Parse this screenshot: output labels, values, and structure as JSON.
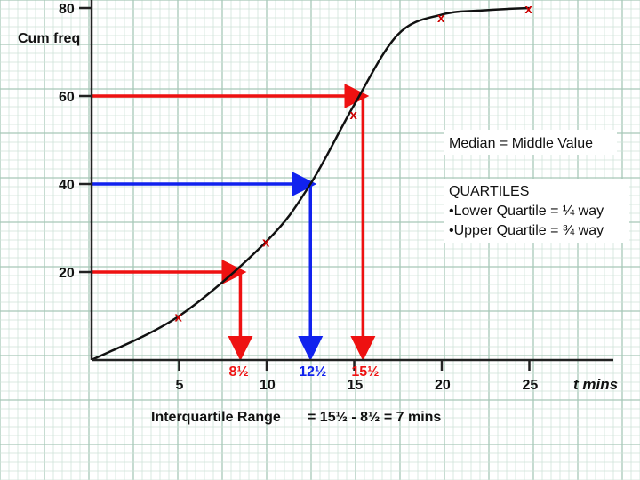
{
  "colors": {
    "grid_fine": "#cfe3d9",
    "grid_major": "#a7c8b8",
    "curve": "#111111",
    "points": "#cc0000",
    "quartile_lines": "#ee1111",
    "median_line": "#1122ee"
  },
  "annotations": {
    "ylabel": "Cum freq",
    "xlabel": "t mins",
    "median_box": "Median = Middle Value",
    "quartiles_title": "QUARTILES",
    "quartiles_lower": "•Lower Quartile = ¼ way",
    "quartiles_upper": "•Upper Quartile = ¾ way",
    "iqr_label": "Interquartile Range",
    "iqr_value": "= 15½ - 8½ = 7 mins"
  },
  "chart_data": {
    "type": "line",
    "xlabel": "t mins",
    "ylabel": "Cum freq",
    "xlim": [
      0,
      27
    ],
    "ylim": [
      0,
      80
    ],
    "x_ticks": [
      5,
      10,
      15,
      20,
      25
    ],
    "y_ticks": [
      20,
      40,
      60,
      80
    ],
    "grid": true,
    "curve": {
      "x": [
        0,
        5,
        10,
        12.5,
        15,
        17.5,
        20,
        22.5,
        25
      ],
      "y": [
        0,
        10,
        27,
        40,
        58,
        74,
        78.5,
        79.5,
        80
      ]
    },
    "points": {
      "marker": "x",
      "x": [
        5,
        10,
        15,
        20,
        25
      ],
      "y": [
        10,
        27,
        56,
        78,
        80
      ]
    },
    "reference_lines": [
      {
        "name": "Lower Quartile",
        "y": 20,
        "x": 8.5,
        "label": "8½",
        "color": "#ee1111"
      },
      {
        "name": "Median",
        "y": 40,
        "x": 12.5,
        "label": "12½",
        "color": "#1122ee"
      },
      {
        "name": "Upper Quartile",
        "y": 60,
        "x": 15.5,
        "label": "15½",
        "color": "#ee1111"
      }
    ]
  }
}
